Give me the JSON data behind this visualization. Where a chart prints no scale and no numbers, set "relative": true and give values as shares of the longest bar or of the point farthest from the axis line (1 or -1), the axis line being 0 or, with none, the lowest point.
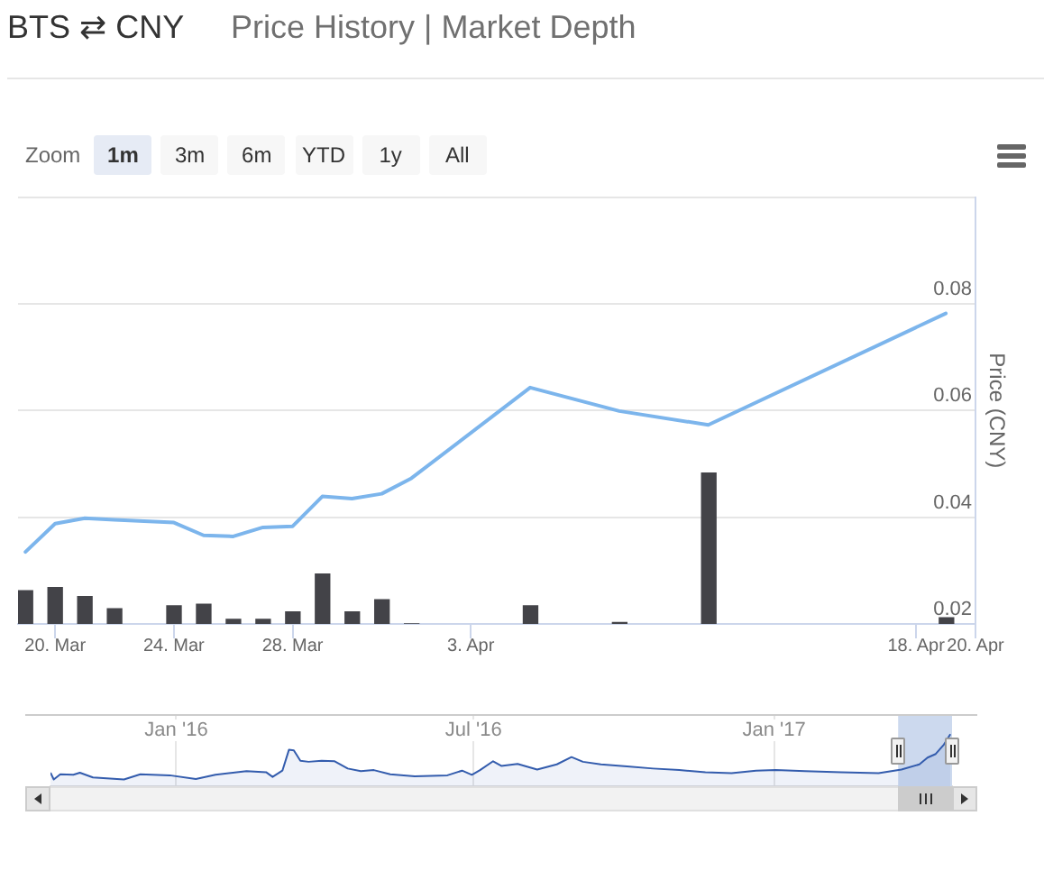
{
  "chart_data": [
    {
      "type": "line",
      "title": "BTS ⇄ CNY",
      "subtitle": "Price History | Market Depth",
      "ylabel": "Price (CNY)",
      "color": "#7cb5ec",
      "x": [
        "2017-03-19",
        "2017-03-20",
        "2017-03-21",
        "2017-03-22",
        "2017-03-24",
        "2017-03-25",
        "2017-03-26",
        "2017-03-27",
        "2017-03-28",
        "2017-03-29",
        "2017-03-30",
        "2017-03-31",
        "2017-04-01",
        "2017-04-05",
        "2017-04-08",
        "2017-04-11",
        "2017-04-19"
      ],
      "values": [
        0.0335,
        0.0388,
        0.0398,
        0.0395,
        0.039,
        0.0366,
        0.0364,
        0.0381,
        0.0383,
        0.0439,
        0.0435,
        0.0444,
        0.0473,
        0.0643,
        0.0599,
        0.0573,
        0.0782
      ],
      "xlim": [
        "2017-03-18T18:00",
        "2017-04-20"
      ],
      "xticks": [
        {
          "value": "2017-03-20",
          "label": "20. Mar"
        },
        {
          "value": "2017-03-24",
          "label": "24. Mar"
        },
        {
          "value": "2017-03-28",
          "label": "28. Mar"
        },
        {
          "value": "2017-04-03",
          "label": "3. Apr"
        },
        {
          "value": "2017-04-18",
          "label": "18. Apr"
        },
        {
          "value": "2017-04-20",
          "label": "20. Apr"
        }
      ],
      "ylim": [
        0.02,
        0.1
      ],
      "yticks": [
        0.02,
        0.04,
        0.06,
        0.08,
        {
          "value": 0.1,
          "label": null
        }
      ],
      "grid": "y",
      "annotations": [
        "Zoom",
        "1m",
        "3m",
        "6m",
        "YTD",
        "1y",
        "All"
      ]
    },
    {
      "type": "bar",
      "relative": true,
      "color": "#434348",
      "x": [
        "2017-03-19",
        "2017-03-20",
        "2017-03-21",
        "2017-03-22",
        "2017-03-24",
        "2017-03-25",
        "2017-03-26",
        "2017-03-27",
        "2017-03-28",
        "2017-03-29",
        "2017-03-30",
        "2017-03-31",
        "2017-04-01",
        "2017-04-05",
        "2017-04-08",
        "2017-04-11",
        "2017-04-19"
      ],
      "values": [
        0.22,
        0.24,
        0.18,
        0.1,
        0.12,
        0.13,
        0.03,
        0.03,
        0.08,
        0.33,
        0.08,
        0.16,
        0,
        0.12,
        0.01,
        1,
        0.04
      ],
      "xlim": [
        "2017-03-18T18:00",
        "2017-04-20"
      ]
    },
    {
      "type": "area",
      "relative": true,
      "color": "#335cad",
      "x": [
        "2015-10-16",
        "2015-10-18",
        "2015-10-22",
        "2015-10-30",
        "2015-11-03",
        "2015-11-11",
        "2015-11-30",
        "2015-12-10",
        "2015-12-28",
        "2016-01-13",
        "2016-01-25",
        "2016-02-13",
        "2016-02-25",
        "2016-02-29",
        "2016-03-06",
        "2016-03-10",
        "2016-03-13",
        "2016-03-17",
        "2016-03-22",
        "2016-03-30",
        "2016-04-07",
        "2016-04-15",
        "2016-04-23",
        "2016-05-01",
        "2016-05-11",
        "2016-05-26",
        "2016-06-15",
        "2016-06-24",
        "2016-06-30",
        "2016-07-05",
        "2016-07-13",
        "2016-07-18",
        "2016-07-28",
        "2016-08-09",
        "2016-08-21",
        "2016-08-30",
        "2016-09-06",
        "2016-09-17",
        "2016-10-03",
        "2016-10-19",
        "2016-11-04",
        "2016-11-20",
        "2016-12-06",
        "2016-12-21",
        "2017-01-02",
        "2017-01-20",
        "2017-02-11",
        "2017-03-06",
        "2017-03-20",
        "2017-03-31",
        "2017-04-05",
        "2017-04-10",
        "2017-04-15",
        "2017-04-19"
      ],
      "values": [
        0.26,
        0.13,
        0.23,
        0.22,
        0.26,
        0.17,
        0.13,
        0.23,
        0.21,
        0.14,
        0.22,
        0.29,
        0.27,
        0.18,
        0.3,
        0.7,
        0.69,
        0.49,
        0.47,
        0.49,
        0.48,
        0.34,
        0.29,
        0.31,
        0.23,
        0.19,
        0.21,
        0.3,
        0.22,
        0.31,
        0.48,
        0.39,
        0.43,
        0.32,
        0.42,
        0.56,
        0.47,
        0.42,
        0.38,
        0.34,
        0.31,
        0.27,
        0.25,
        0.3,
        0.31,
        0.29,
        0.27,
        0.25,
        0.32,
        0.42,
        0.55,
        0.62,
        0.8,
        1
      ],
      "xlim": [
        "2015-10-16",
        "2017-04-20"
      ],
      "xticks": [
        {
          "value": "2016-01-01",
          "label": "Jan '16"
        },
        {
          "value": "2016-07-01",
          "label": "Jul '16"
        },
        {
          "value": "2017-01-01",
          "label": "Jan '17"
        }
      ],
      "grid": "x",
      "bands": [
        {
          "axis": "x",
          "from": "2017-03-18",
          "to": "2017-04-20",
          "color": "#ccd9ee"
        }
      ]
    }
  ]
}
